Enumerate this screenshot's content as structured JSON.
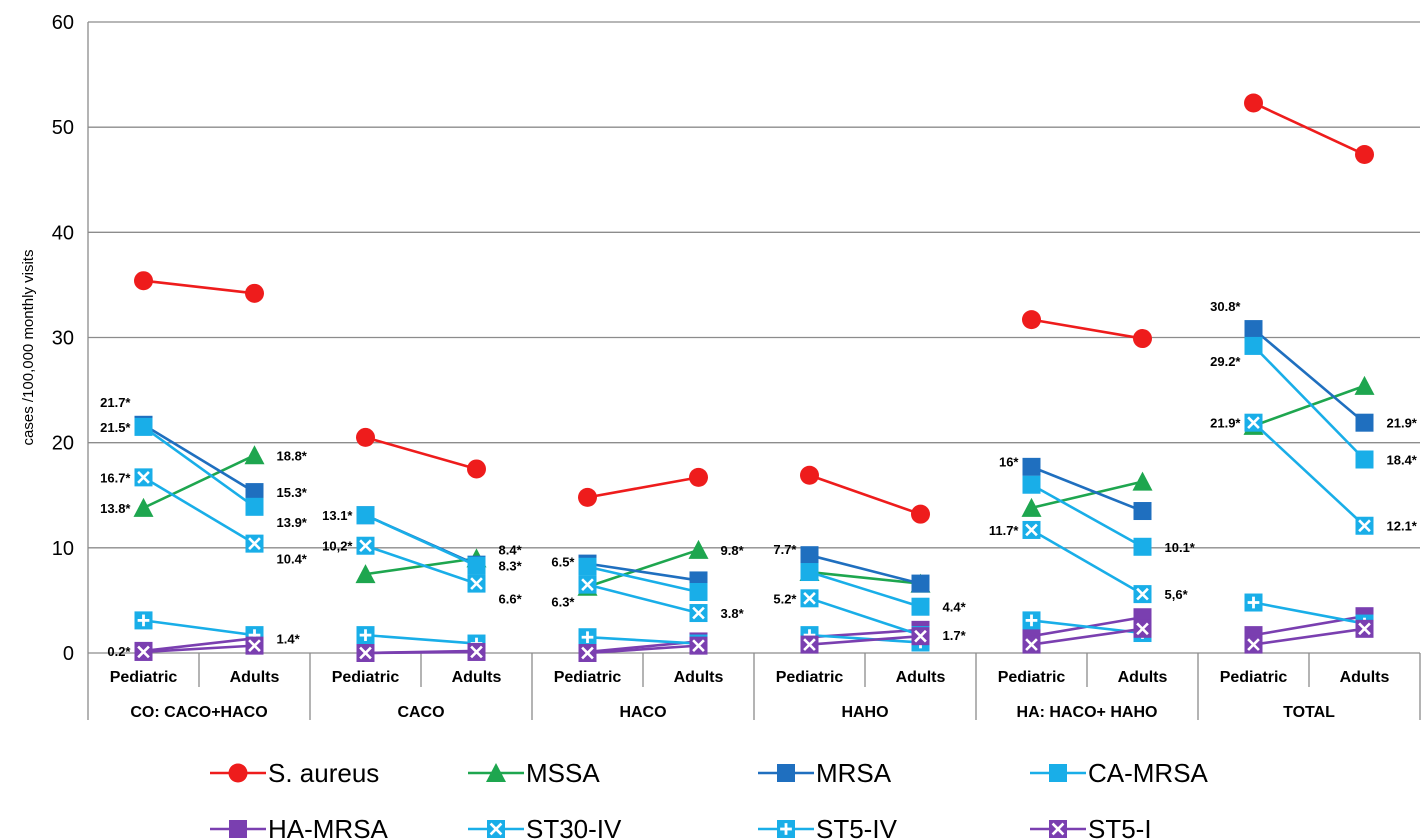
{
  "chart_data": {
    "type": "line",
    "ylabel": "cases /100,000 monthly visits",
    "ylim": [
      0,
      60
    ],
    "yticks": [
      0,
      10,
      20,
      30,
      40,
      50,
      60
    ],
    "grid": true,
    "legend_position": "bottom",
    "groups": [
      "CO: CACO+HACO",
      "CACO",
      "HACO",
      "HAHO",
      "HA: HACO+ HAHO",
      "TOTAL"
    ],
    "subcategories": [
      "Pediatric",
      "Adults"
    ],
    "series": [
      {
        "name": "S. aureus",
        "color": "#ee1c1c",
        "marker": "circle",
        "values": [
          [
            35.4,
            34.2
          ],
          [
            20.5,
            17.5
          ],
          [
            14.8,
            16.7
          ],
          [
            16.9,
            13.2
          ],
          [
            31.7,
            29.9
          ],
          [
            52.3,
            47.4
          ]
        ]
      },
      {
        "name": "MSSA",
        "color": "#1ea64f",
        "marker": "triangle",
        "values": [
          [
            13.8,
            18.8
          ],
          [
            7.5,
            9.0
          ],
          [
            6.3,
            9.8
          ],
          [
            7.7,
            6.6
          ],
          [
            13.8,
            16.3
          ],
          [
            21.6,
            25.4
          ]
        ]
      },
      {
        "name": "MRSA",
        "color": "#1f6fbf",
        "marker": "square",
        "values": [
          [
            21.7,
            15.3
          ],
          [
            13.1,
            8.4
          ],
          [
            8.5,
            6.9
          ],
          [
            9.3,
            6.6
          ],
          [
            17.7,
            13.5
          ],
          [
            30.8,
            21.9
          ]
        ]
      },
      {
        "name": "CA-MRSA",
        "color": "#19aee8",
        "marker": "square",
        "values": [
          [
            21.5,
            13.9
          ],
          [
            13.1,
            8.3
          ],
          [
            8.2,
            5.8
          ],
          [
            7.7,
            4.4
          ],
          [
            16.0,
            10.1
          ],
          [
            29.2,
            18.4
          ]
        ]
      },
      {
        "name": "HA-MRSA",
        "color": "#7a3fb0",
        "marker": "square",
        "values": [
          [
            0.2,
            1.4
          ],
          [
            0.0,
            0.2
          ],
          [
            0.1,
            1.1
          ],
          [
            1.5,
            2.2
          ],
          [
            1.6,
            3.4
          ],
          [
            1.7,
            3.5
          ]
        ]
      },
      {
        "name": "ST30-IV",
        "color": "#19aee8",
        "marker": "xbox",
        "values": [
          [
            16.7,
            10.4
          ],
          [
            10.2,
            6.6
          ],
          [
            6.5,
            3.8
          ],
          [
            5.2,
            1.7
          ],
          [
            11.7,
            5.6
          ],
          [
            21.9,
            12.1
          ]
        ]
      },
      {
        "name": "ST5-IV",
        "color": "#19aee8",
        "marker": "plusbox",
        "values": [
          [
            3.1,
            1.7
          ],
          [
            1.7,
            0.9
          ],
          [
            1.5,
            0.9
          ],
          [
            1.7,
            1.0
          ],
          [
            3.1,
            1.9
          ],
          [
            4.8,
            2.8
          ]
        ]
      },
      {
        "name": "ST5-I",
        "color": "#7a3fb0",
        "marker": "xbox",
        "values": [
          [
            0.1,
            0.7
          ],
          [
            0.0,
            0.1
          ],
          [
            0.0,
            0.7
          ],
          [
            0.8,
            1.6
          ],
          [
            0.8,
            2.3
          ],
          [
            0.8,
            2.3
          ]
        ]
      }
    ],
    "annotations": [
      {
        "text": "21.7*",
        "group": 0,
        "sub": 0,
        "value": 21.7,
        "side": "left-above"
      },
      {
        "text": "21.5*",
        "group": 0,
        "sub": 0,
        "value": 21.5,
        "side": "left"
      },
      {
        "text": "16.7*",
        "group": 0,
        "sub": 0,
        "value": 16.7,
        "side": "left"
      },
      {
        "text": "13.8*",
        "group": 0,
        "sub": 0,
        "value": 13.8,
        "side": "left"
      },
      {
        "text": "0.2*",
        "group": 0,
        "sub": 0,
        "value": 0.2,
        "side": "left"
      },
      {
        "text": "18.8*",
        "group": 0,
        "sub": 1,
        "value": 18.8,
        "side": "right"
      },
      {
        "text": "15.3*",
        "group": 0,
        "sub": 1,
        "value": 15.3,
        "side": "right"
      },
      {
        "text": "13.9*",
        "group": 0,
        "sub": 1,
        "value": 13.9,
        "side": "right-below"
      },
      {
        "text": "10.4*",
        "group": 0,
        "sub": 1,
        "value": 10.4,
        "side": "right-below"
      },
      {
        "text": "1.4*",
        "group": 0,
        "sub": 1,
        "value": 1.4,
        "side": "right"
      },
      {
        "text": "13.1*",
        "group": 1,
        "sub": 0,
        "value": 13.1,
        "side": "left"
      },
      {
        "text": "10,2*",
        "group": 1,
        "sub": 0,
        "value": 10.2,
        "side": "left"
      },
      {
        "text": "8.4*",
        "group": 1,
        "sub": 1,
        "value": 8.4,
        "side": "right-above"
      },
      {
        "text": "8.3*",
        "group": 1,
        "sub": 1,
        "value": 8.3,
        "side": "right"
      },
      {
        "text": "6.6*",
        "group": 1,
        "sub": 1,
        "value": 6.6,
        "side": "right-below"
      },
      {
        "text": "6.5*",
        "group": 2,
        "sub": 0,
        "value": 6.5,
        "side": "left-above"
      },
      {
        "text": "6.3*",
        "group": 2,
        "sub": 0,
        "value": 6.3,
        "side": "left-below"
      },
      {
        "text": "9.8*",
        "group": 2,
        "sub": 1,
        "value": 9.8,
        "side": "right"
      },
      {
        "text": "3.8*",
        "group": 2,
        "sub": 1,
        "value": 3.8,
        "side": "right"
      },
      {
        "text": "7.7*",
        "group": 3,
        "sub": 0,
        "value": 7.7,
        "side": "left-above"
      },
      {
        "text": "5.2*",
        "group": 3,
        "sub": 0,
        "value": 5.2,
        "side": "left"
      },
      {
        "text": "4.4*",
        "group": 3,
        "sub": 1,
        "value": 4.4,
        "side": "right"
      },
      {
        "text": "1.7*",
        "group": 3,
        "sub": 1,
        "value": 1.7,
        "side": "right"
      },
      {
        "text": "16*",
        "group": 4,
        "sub": 0,
        "value": 16.0,
        "side": "left-above"
      },
      {
        "text": "11.7*",
        "group": 4,
        "sub": 0,
        "value": 11.7,
        "side": "left"
      },
      {
        "text": "10.1*",
        "group": 4,
        "sub": 1,
        "value": 10.1,
        "side": "right"
      },
      {
        "text": "5,6*",
        "group": 4,
        "sub": 1,
        "value": 5.6,
        "side": "right"
      },
      {
        "text": "30.8*",
        "group": 5,
        "sub": 0,
        "value": 30.8,
        "side": "left-above"
      },
      {
        "text": "29.2*",
        "group": 5,
        "sub": 0,
        "value": 29.2,
        "side": "left-below"
      },
      {
        "text": "21.9*",
        "group": 5,
        "sub": 0,
        "value": 21.9,
        "side": "left"
      },
      {
        "text": "21.9*",
        "group": 5,
        "sub": 1,
        "value": 21.9,
        "side": "right"
      },
      {
        "text": "18.4*",
        "group": 5,
        "sub": 1,
        "value": 18.4,
        "side": "right"
      },
      {
        "text": "12.1*",
        "group": 5,
        "sub": 1,
        "value": 12.1,
        "side": "right"
      }
    ]
  }
}
